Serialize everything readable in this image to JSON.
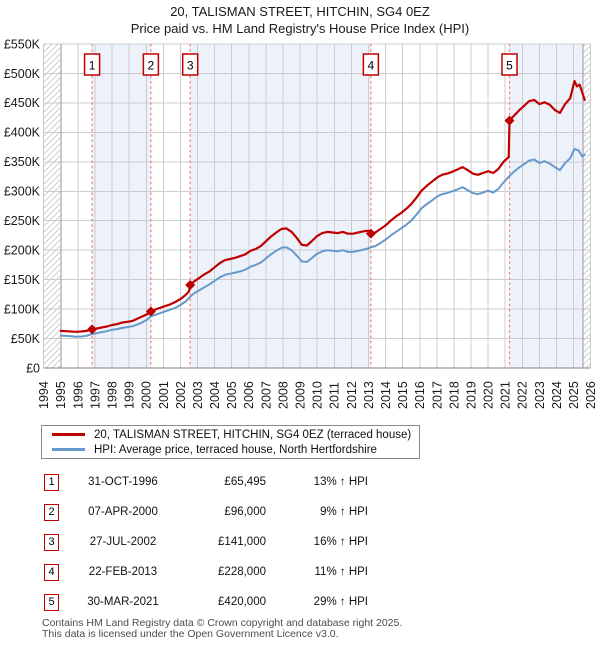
{
  "footer": {
    "line1": "Contains HM Land Registry data © Crown copyright and database right 2025.",
    "line2": "This data is licensed under the Open Government Licence v3.0."
  },
  "chart_data": {
    "type": "line",
    "title": "20, TALISMAN STREET, HITCHIN, SG4 0EZ",
    "subtitle": "Price paid vs. HM Land Registry's House Price Index (HPI)",
    "x_axis": {
      "min": 1994,
      "max": 2026,
      "ticks": [
        1994,
        1995,
        1996,
        1997,
        1998,
        1999,
        2000,
        2001,
        2002,
        2003,
        2004,
        2005,
        2006,
        2007,
        2008,
        2009,
        2010,
        2011,
        2012,
        2013,
        2014,
        2015,
        2016,
        2017,
        2018,
        2019,
        2020,
        2021,
        2022,
        2023,
        2024,
        2025,
        2026
      ]
    },
    "y_axis": {
      "min": 0,
      "max": 550000,
      "tick_step": 50000,
      "tick_labels": [
        "£0",
        "£50K",
        "£100K",
        "£150K",
        "£200K",
        "£250K",
        "£300K",
        "£350K",
        "£400K",
        "£450K",
        "£500K",
        "£550K"
      ]
    },
    "legend": [
      {
        "label": "20, TALISMAN STREET, HITCHIN, SG4 0EZ (terraced house)",
        "color": "#c00000"
      },
      {
        "label": "HPI: Average price, terraced house, North Hertfordshire",
        "color": "#6699cc"
      }
    ],
    "series": [
      {
        "name": "price-paid",
        "color": "#c00000",
        "width": 2.2,
        "units": "GBP_thousands",
        "points": [
          [
            1995.0,
            63
          ],
          [
            1995.3,
            62.5
          ],
          [
            1995.6,
            62
          ],
          [
            1995.9,
            61.5
          ],
          [
            1996.2,
            62
          ],
          [
            1996.5,
            63
          ],
          [
            1996.83,
            65.5
          ],
          [
            1997.1,
            67
          ],
          [
            1997.4,
            69
          ],
          [
            1997.7,
            70.5
          ],
          [
            1998.0,
            73
          ],
          [
            1998.3,
            74.5
          ],
          [
            1998.6,
            77
          ],
          [
            1998.9,
            78.5
          ],
          [
            1999.2,
            80
          ],
          [
            1999.5,
            84
          ],
          [
            1999.8,
            88
          ],
          [
            2000.1,
            92
          ],
          [
            2000.27,
            96
          ],
          [
            2000.5,
            99
          ],
          [
            2000.8,
            102
          ],
          [
            2001.1,
            105
          ],
          [
            2001.4,
            108
          ],
          [
            2001.7,
            112
          ],
          [
            2002.0,
            117
          ],
          [
            2002.3,
            124
          ],
          [
            2002.5,
            130
          ],
          [
            2002.57,
            141
          ],
          [
            2002.8,
            147
          ],
          [
            2003.1,
            153
          ],
          [
            2003.4,
            159
          ],
          [
            2003.7,
            164
          ],
          [
            2004.0,
            171
          ],
          [
            2004.3,
            178
          ],
          [
            2004.6,
            183
          ],
          [
            2004.9,
            185
          ],
          [
            2005.2,
            187
          ],
          [
            2005.5,
            190
          ],
          [
            2005.8,
            193
          ],
          [
            2006.1,
            199
          ],
          [
            2006.4,
            202
          ],
          [
            2006.7,
            207
          ],
          [
            2007.0,
            215
          ],
          [
            2007.3,
            223
          ],
          [
            2007.6,
            230
          ],
          [
            2007.9,
            236
          ],
          [
            2008.2,
            237
          ],
          [
            2008.5,
            231
          ],
          [
            2008.8,
            221
          ],
          [
            2009.1,
            209
          ],
          [
            2009.4,
            208
          ],
          [
            2009.7,
            216
          ],
          [
            2010.0,
            224
          ],
          [
            2010.3,
            229
          ],
          [
            2010.6,
            231
          ],
          [
            2010.9,
            230
          ],
          [
            2011.2,
            229
          ],
          [
            2011.5,
            231
          ],
          [
            2011.8,
            228
          ],
          [
            2012.1,
            228
          ],
          [
            2012.4,
            230
          ],
          [
            2012.7,
            232
          ],
          [
            2013.0,
            233
          ],
          [
            2013.14,
            228
          ],
          [
            2013.4,
            230
          ],
          [
            2013.7,
            236
          ],
          [
            2014.0,
            242
          ],
          [
            2014.3,
            250
          ],
          [
            2014.6,
            257
          ],
          [
            2014.9,
            263
          ],
          [
            2015.2,
            270
          ],
          [
            2015.5,
            278
          ],
          [
            2015.8,
            289
          ],
          [
            2016.1,
            301
          ],
          [
            2016.4,
            309
          ],
          [
            2016.7,
            316
          ],
          [
            2017.0,
            323
          ],
          [
            2017.3,
            328
          ],
          [
            2017.6,
            330
          ],
          [
            2017.9,
            333
          ],
          [
            2018.2,
            337
          ],
          [
            2018.5,
            341
          ],
          [
            2018.8,
            336
          ],
          [
            2019.1,
            330
          ],
          [
            2019.4,
            328
          ],
          [
            2019.7,
            331
          ],
          [
            2020.0,
            334
          ],
          [
            2020.3,
            331
          ],
          [
            2020.6,
            338
          ],
          [
            2020.9,
            350
          ],
          [
            2021.2,
            358
          ],
          [
            2021.25,
            420
          ],
          [
            2021.5,
            428
          ],
          [
            2021.8,
            437
          ],
          [
            2022.1,
            445
          ],
          [
            2022.4,
            453
          ],
          [
            2022.7,
            455
          ],
          [
            2023.0,
            448
          ],
          [
            2023.3,
            451
          ],
          [
            2023.6,
            447
          ],
          [
            2023.9,
            438
          ],
          [
            2024.2,
            433
          ],
          [
            2024.5,
            448
          ],
          [
            2024.8,
            458
          ],
          [
            2025.05,
            487
          ],
          [
            2025.2,
            478
          ],
          [
            2025.35,
            481
          ],
          [
            2025.5,
            468
          ],
          [
            2025.65,
            455
          ]
        ]
      },
      {
        "name": "hpi",
        "color": "#6699cc",
        "width": 2,
        "units": "GBP_thousands",
        "points": [
          [
            1995.0,
            55
          ],
          [
            1995.3,
            54.5
          ],
          [
            1995.6,
            54
          ],
          [
            1995.9,
            53
          ],
          [
            1996.2,
            53.5
          ],
          [
            1996.5,
            54.5
          ],
          [
            1996.83,
            58
          ],
          [
            1997.1,
            59
          ],
          [
            1997.4,
            61
          ],
          [
            1997.7,
            62.5
          ],
          [
            1998.0,
            65
          ],
          [
            1998.3,
            66
          ],
          [
            1998.6,
            68
          ],
          [
            1998.9,
            69.5
          ],
          [
            1999.2,
            71
          ],
          [
            1999.5,
            74
          ],
          [
            1999.8,
            78
          ],
          [
            2000.1,
            83
          ],
          [
            2000.27,
            88
          ],
          [
            2000.5,
            90
          ],
          [
            2000.8,
            93
          ],
          [
            2001.1,
            96
          ],
          [
            2001.4,
            99
          ],
          [
            2001.7,
            102
          ],
          [
            2002.0,
            107
          ],
          [
            2002.3,
            113
          ],
          [
            2002.57,
            121
          ],
          [
            2002.8,
            127
          ],
          [
            2003.1,
            132
          ],
          [
            2003.4,
            137
          ],
          [
            2003.7,
            142
          ],
          [
            2004.0,
            148
          ],
          [
            2004.3,
            154
          ],
          [
            2004.6,
            158
          ],
          [
            2004.9,
            160
          ],
          [
            2005.2,
            162
          ],
          [
            2005.5,
            164
          ],
          [
            2005.8,
            167
          ],
          [
            2006.1,
            172
          ],
          [
            2006.4,
            175
          ],
          [
            2006.7,
            179
          ],
          [
            2007.0,
            186
          ],
          [
            2007.3,
            193
          ],
          [
            2007.6,
            199
          ],
          [
            2007.9,
            204
          ],
          [
            2008.2,
            205
          ],
          [
            2008.5,
            200
          ],
          [
            2008.8,
            191
          ],
          [
            2009.1,
            181
          ],
          [
            2009.4,
            180
          ],
          [
            2009.7,
            187
          ],
          [
            2010.0,
            194
          ],
          [
            2010.3,
            198
          ],
          [
            2010.6,
            200
          ],
          [
            2010.9,
            199
          ],
          [
            2011.2,
            198
          ],
          [
            2011.5,
            200
          ],
          [
            2011.8,
            197
          ],
          [
            2012.1,
            197
          ],
          [
            2012.4,
            199
          ],
          [
            2012.7,
            201
          ],
          [
            2013.0,
            203
          ],
          [
            2013.14,
            205
          ],
          [
            2013.4,
            207
          ],
          [
            2013.7,
            212
          ],
          [
            2014.0,
            218
          ],
          [
            2014.3,
            225
          ],
          [
            2014.6,
            231
          ],
          [
            2014.9,
            237
          ],
          [
            2015.2,
            243
          ],
          [
            2015.5,
            250
          ],
          [
            2015.8,
            260
          ],
          [
            2016.1,
            271
          ],
          [
            2016.4,
            278
          ],
          [
            2016.7,
            284
          ],
          [
            2017.0,
            291
          ],
          [
            2017.3,
            295
          ],
          [
            2017.6,
            297
          ],
          [
            2017.9,
            300
          ],
          [
            2018.2,
            303
          ],
          [
            2018.5,
            307
          ],
          [
            2018.8,
            302
          ],
          [
            2019.1,
            297
          ],
          [
            2019.4,
            295
          ],
          [
            2019.7,
            298
          ],
          [
            2020.0,
            301
          ],
          [
            2020.3,
            298
          ],
          [
            2020.6,
            304
          ],
          [
            2020.9,
            315
          ],
          [
            2021.25,
            326
          ],
          [
            2021.5,
            333
          ],
          [
            2021.8,
            340
          ],
          [
            2022.1,
            346
          ],
          [
            2022.4,
            352
          ],
          [
            2022.7,
            354
          ],
          [
            2023.0,
            348
          ],
          [
            2023.3,
            351
          ],
          [
            2023.6,
            347
          ],
          [
            2023.9,
            341
          ],
          [
            2024.2,
            336
          ],
          [
            2024.5,
            348
          ],
          [
            2024.8,
            356
          ],
          [
            2025.05,
            372
          ],
          [
            2025.3,
            369
          ],
          [
            2025.5,
            359
          ],
          [
            2025.65,
            362
          ]
        ]
      }
    ],
    "sales": [
      {
        "num": "1",
        "date": "31-OCT-1996",
        "price": 65495,
        "price_label": "£65,495",
        "hpi_delta": "13% ↑ HPI",
        "year": 1996.83
      },
      {
        "num": "2",
        "date": "07-APR-2000",
        "price": 96000,
        "price_label": "£96,000",
        "hpi_delta": "9% ↑ HPI",
        "year": 2000.27
      },
      {
        "num": "3",
        "date": "27-JUL-2002",
        "price": 141000,
        "price_label": "£141,000",
        "hpi_delta": "16% ↑ HPI",
        "year": 2002.57
      },
      {
        "num": "4",
        "date": "22-FEB-2013",
        "price": 228000,
        "price_label": "£228,000",
        "hpi_delta": "11% ↑ HPI",
        "year": 2013.14
      },
      {
        "num": "5",
        "date": "30-MAR-2021",
        "price": 420000,
        "price_label": "£420,000",
        "hpi_delta": "29% ↑ HPI",
        "year": 2021.25
      }
    ],
    "owned_bands": [
      [
        1996.83,
        2000.27
      ],
      [
        2002.57,
        2013.14
      ],
      [
        2021.25,
        2025.55
      ]
    ],
    "no_data_bands": [
      [
        1994,
        1995.02
      ],
      [
        2025.55,
        2026
      ]
    ],
    "style": {
      "grid_color": "#cccccc",
      "band_color": "#edf2fa",
      "dashed_color": "#f47c7c",
      "hatch_color": "#c9c9c9",
      "hatch_edge_color": "#999999",
      "axis_color": "#808080",
      "text_color": "#1a1a1a",
      "marker_color": "#c00000",
      "box_border_color": "#c00000"
    }
  }
}
